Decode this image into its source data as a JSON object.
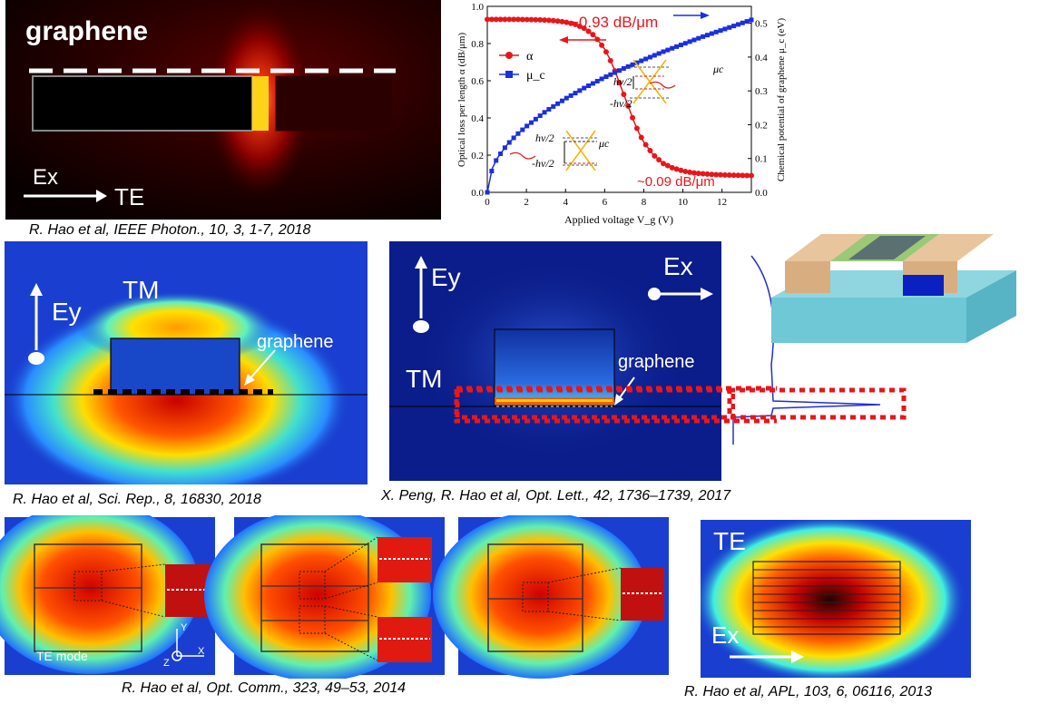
{
  "panels": {
    "p1": {
      "graphene": "graphene",
      "pol": "Ex",
      "mode": "TE",
      "caption": "R. Hao et al, IEEE Photon., 10, 3, 1-7, 2018"
    },
    "p3": {
      "pol": "Ey",
      "mode": "TM",
      "graphene": "graphene",
      "caption": "R. Hao et al, Sci. Rep., 8, 16830, 2018"
    },
    "p4": {
      "pol1": "Ey",
      "pol2": "Ex",
      "mode": "TM",
      "graphene": "graphene",
      "caption": "X. Peng, R. Hao et al, Opt. Lett., 42, 1736–1739, 2017"
    },
    "p5": {
      "mode_label": "TE mode",
      "axis_y": "Y",
      "axis_z": "Z",
      "axis_x": "X",
      "caption": "R. Hao et al, Opt. Comm., 323, 49–53, 2014"
    },
    "p6": {
      "mode": "TE",
      "pol": "Ex",
      "caption": "R. Hao et al, APL, 103, 6, 06116, 2013"
    }
  },
  "chart_data": {
    "type": "line",
    "xlabel": "Applied voltage V_g (V)",
    "ylabel_left": "Optical loss per length α (dB/μm)",
    "ylabel_right": "Chemical potential of graphene μ_c (eV)",
    "xlim": [
      0,
      13.5
    ],
    "ylim_left": [
      0,
      1.0
    ],
    "ylim_right": [
      0,
      0.55
    ],
    "xticks": [
      "0",
      "2",
      "4",
      "6",
      "8",
      "10",
      "12"
    ],
    "yticks_left": [
      "0.0",
      "0.2",
      "0.4",
      "0.6",
      "0.8",
      "1.0"
    ],
    "yticks_right": [
      "0.0",
      "0.1",
      "0.2",
      "0.3",
      "0.4",
      "0.5"
    ],
    "legend": [
      "α",
      "μ_c"
    ],
    "legend_position": "upper-left",
    "annotations": [
      "~0.93 dB/μm",
      "~0.09 dB/μm",
      "hv/2",
      "-hv/2",
      "μc"
    ],
    "colors": {
      "alpha": "#e8161b",
      "mu": "#1b2fe0"
    },
    "series": [
      {
        "name": "α",
        "axis": "left",
        "x": [
          0,
          0.5,
          1,
          1.5,
          2,
          2.5,
          3,
          3.5,
          4,
          4.5,
          5,
          5.5,
          6,
          6.25,
          6.5,
          6.75,
          7,
          7.25,
          7.5,
          7.75,
          8,
          8.5,
          9,
          9.5,
          10,
          10.5,
          11,
          11.5,
          12,
          12.5,
          13,
          13.5
        ],
        "y": [
          0.93,
          0.93,
          0.93,
          0.93,
          0.929,
          0.928,
          0.926,
          0.922,
          0.915,
          0.903,
          0.88,
          0.84,
          0.77,
          0.72,
          0.66,
          0.59,
          0.52,
          0.45,
          0.38,
          0.32,
          0.27,
          0.2,
          0.155,
          0.13,
          0.115,
          0.105,
          0.1,
          0.096,
          0.094,
          0.092,
          0.091,
          0.09
        ]
      },
      {
        "name": "μ_c",
        "axis": "right",
        "x": [
          0,
          0.25,
          0.5,
          1,
          1.5,
          2,
          3,
          4,
          5,
          6,
          7,
          8,
          9,
          10,
          11,
          12,
          13,
          13.5
        ],
        "y": [
          0,
          0.07,
          0.1,
          0.14,
          0.17,
          0.195,
          0.24,
          0.277,
          0.31,
          0.34,
          0.367,
          0.392,
          0.416,
          0.438,
          0.46,
          0.48,
          0.5,
          0.51
        ]
      }
    ]
  }
}
